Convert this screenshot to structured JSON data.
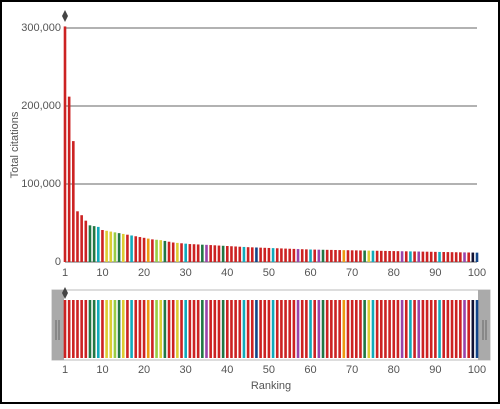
{
  "chart_data": {
    "type": "bar",
    "y_label": "Total citations",
    "x_label": "Ranking",
    "x": [
      1,
      2,
      3,
      4,
      5,
      6,
      7,
      8,
      9,
      10,
      11,
      12,
      13,
      14,
      15,
      16,
      17,
      18,
      19,
      20,
      21,
      22,
      23,
      24,
      25,
      26,
      27,
      28,
      29,
      30,
      31,
      32,
      33,
      34,
      35,
      36,
      37,
      38,
      39,
      40,
      41,
      42,
      43,
      44,
      45,
      46,
      47,
      48,
      49,
      50,
      51,
      52,
      53,
      54,
      55,
      56,
      57,
      58,
      59,
      60,
      61,
      62,
      63,
      64,
      65,
      66,
      67,
      68,
      69,
      70,
      71,
      72,
      73,
      74,
      75,
      76,
      77,
      78,
      79,
      80,
      81,
      82,
      83,
      84,
      85,
      86,
      87,
      88,
      89,
      90,
      91,
      92,
      93,
      94,
      95,
      96,
      97,
      98,
      99,
      100
    ],
    "values": [
      302000,
      212000,
      155000,
      65000,
      60000,
      53000,
      47000,
      46000,
      45000,
      41000,
      40000,
      39000,
      38000,
      37000,
      36000,
      35000,
      34000,
      33000,
      32000,
      31000,
      30000,
      29000,
      28500,
      28000,
      27000,
      26000,
      25000,
      24500,
      24000,
      23500,
      23000,
      22800,
      22500,
      22200,
      22000,
      21700,
      21400,
      21100,
      20800,
      20500,
      20200,
      19900,
      19600,
      19300,
      19000,
      18800,
      18600,
      18400,
      18200,
      18000,
      17800,
      17600,
      17400,
      17200,
      17000,
      16800,
      16600,
      16400,
      16200,
      16000,
      15900,
      15800,
      15700,
      15600,
      15500,
      15400,
      15300,
      15200,
      15100,
      15000,
      14900,
      14800,
      14700,
      14600,
      14500,
      14400,
      14300,
      14200,
      14100,
      14000,
      13900,
      13800,
      13700,
      13600,
      13500,
      13400,
      13300,
      13200,
      13100,
      13000,
      12900,
      12800,
      12700,
      12600,
      12500,
      12400,
      12300,
      12200,
      12100,
      12000
    ],
    "colors": [
      "#c22",
      "#c22",
      "#c22",
      "#c22",
      "#c22",
      "#c22",
      "#274",
      "#274",
      "#1ab",
      "#c22",
      "#dc3",
      "#dc3",
      "#9c4",
      "#274",
      "#dc3",
      "#c22",
      "#1ab",
      "#c22",
      "#c22",
      "#c22",
      "#e91",
      "#c22",
      "#9c4",
      "#dc3",
      "#274",
      "#c22",
      "#c22",
      "#dc3",
      "#c22",
      "#1ab",
      "#c22",
      "#c22",
      "#c22",
      "#274",
      "#94a",
      "#c22",
      "#c22",
      "#c22",
      "#274",
      "#c22",
      "#c22",
      "#c22",
      "#c22",
      "#1ab",
      "#c22",
      "#c22",
      "#148",
      "#c22",
      "#c22",
      "#c22",
      "#1ab",
      "#c22",
      "#c22",
      "#c22",
      "#c22",
      "#c22",
      "#94a",
      "#c22",
      "#c22",
      "#1ab",
      "#c22",
      "#94a",
      "#274",
      "#c22",
      "#c22",
      "#c22",
      "#c22",
      "#e91",
      "#c22",
      "#c22",
      "#c22",
      "#c22",
      "#274",
      "#dc3",
      "#1ab",
      "#c22",
      "#c22",
      "#c22",
      "#c22",
      "#c22",
      "#c22",
      "#94a",
      "#c22",
      "#1ab",
      "#c22",
      "#94a",
      "#c22",
      "#c22",
      "#c22",
      "#c22",
      "#1ab",
      "#c22",
      "#c22",
      "#c22",
      "#c22",
      "#c22",
      "#94a",
      "#c22",
      "#113",
      "#148"
    ],
    "xlim": [
      1,
      100
    ],
    "xticks": [
      1,
      10,
      20,
      30,
      40,
      50,
      60,
      70,
      80,
      90,
      100
    ],
    "ylim": [
      0,
      300000
    ],
    "yticks": [
      0,
      {
        "value": 100000,
        "label": "100,000"
      },
      {
        "value": 200000,
        "label": "200,000"
      },
      {
        "value": 300000,
        "label": "300,000"
      }
    ],
    "grid": true
  }
}
